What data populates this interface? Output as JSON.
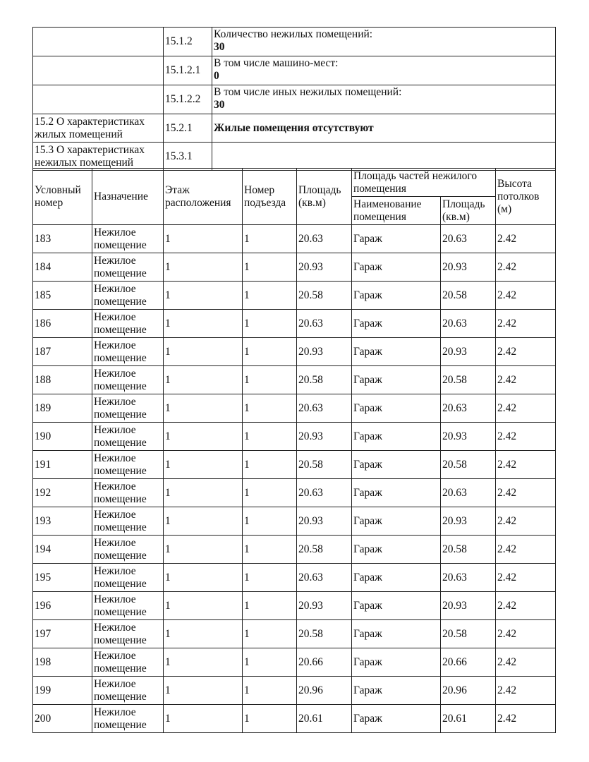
{
  "top_rows": [
    {
      "section": "",
      "code": "15.1.2",
      "label": "Количество нежилых помещений:",
      "value": "30"
    },
    {
      "section": "",
      "code": "15.1.2.1",
      "label": "В том числе машино-мест:",
      "value": "0"
    },
    {
      "section": "",
      "code": "15.1.2.2",
      "label": "В том числе иных нежилых помещений:",
      "value": "30"
    },
    {
      "section": "15.2 О характеристиках жилых помещений",
      "code": "15.2.1",
      "label": "",
      "value": "Жилые помещения отсутствуют"
    },
    {
      "section": "15.3 О характеристиках нежилых помещений",
      "code": "15.3.1",
      "label": "",
      "value": ""
    }
  ],
  "headers": {
    "number": "Условный номер",
    "purpose": "Назначение",
    "floor": "Этаж расположения",
    "entrance": "Номер подъезда",
    "area": "Площадь (кв.м)",
    "parts": "Площадь частей нежилого помещения",
    "part_name": "Наименование помещения",
    "part_area": "Площадь (кв.м)",
    "height": "Высота потолков (м)"
  },
  "rows": [
    [
      "183",
      "Нежилое помещение",
      "1",
      "1",
      "20.63",
      "Гараж",
      "20.63",
      "2.42"
    ],
    [
      "184",
      "Нежилое помещение",
      "1",
      "1",
      "20.93",
      "Гараж",
      "20.93",
      "2.42"
    ],
    [
      "185",
      "Нежилое помещение",
      "1",
      "1",
      "20.58",
      "Гараж",
      "20.58",
      "2.42"
    ],
    [
      "186",
      "Нежилое помещение",
      "1",
      "1",
      "20.63",
      "Гараж",
      "20.63",
      "2.42"
    ],
    [
      "187",
      "Нежилое помещение",
      "1",
      "1",
      "20.93",
      "Гараж",
      "20.93",
      "2.42"
    ],
    [
      "188",
      "Нежилое помещение",
      "1",
      "1",
      "20.58",
      "Гараж",
      "20.58",
      "2.42"
    ],
    [
      "189",
      "Нежилое помещение",
      "1",
      "1",
      "20.63",
      "Гараж",
      "20.63",
      "2.42"
    ],
    [
      "190",
      "Нежилое помещение",
      "1",
      "1",
      "20.93",
      "Гараж",
      "20.93",
      "2.42"
    ],
    [
      "191",
      "Нежилое помещение",
      "1",
      "1",
      "20.58",
      "Гараж",
      "20.58",
      "2.42"
    ],
    [
      "192",
      "Нежилое помещение",
      "1",
      "1",
      "20.63",
      "Гараж",
      "20.63",
      "2.42"
    ],
    [
      "193",
      "Нежилое помещение",
      "1",
      "1",
      "20.93",
      "Гараж",
      "20.93",
      "2.42"
    ],
    [
      "194",
      "Нежилое помещение",
      "1",
      "1",
      "20.58",
      "Гараж",
      "20.58",
      "2.42"
    ],
    [
      "195",
      "Нежилое помещение",
      "1",
      "1",
      "20.63",
      "Гараж",
      "20.63",
      "2.42"
    ],
    [
      "196",
      "Нежилое помещение",
      "1",
      "1",
      "20.93",
      "Гараж",
      "20.93",
      "2.42"
    ],
    [
      "197",
      "Нежилое помещение",
      "1",
      "1",
      "20.58",
      "Гараж",
      "20.58",
      "2.42"
    ],
    [
      "198",
      "Нежилое помещение",
      "1",
      "1",
      "20.66",
      "Гараж",
      "20.66",
      "2.42"
    ],
    [
      "199",
      "Нежилое помещение",
      "1",
      "1",
      "20.96",
      "Гараж",
      "20.96",
      "2.42"
    ],
    [
      "200",
      "Нежилое помещение",
      "1",
      "1",
      "20.61",
      "Гараж",
      "20.61",
      "2.42"
    ]
  ]
}
